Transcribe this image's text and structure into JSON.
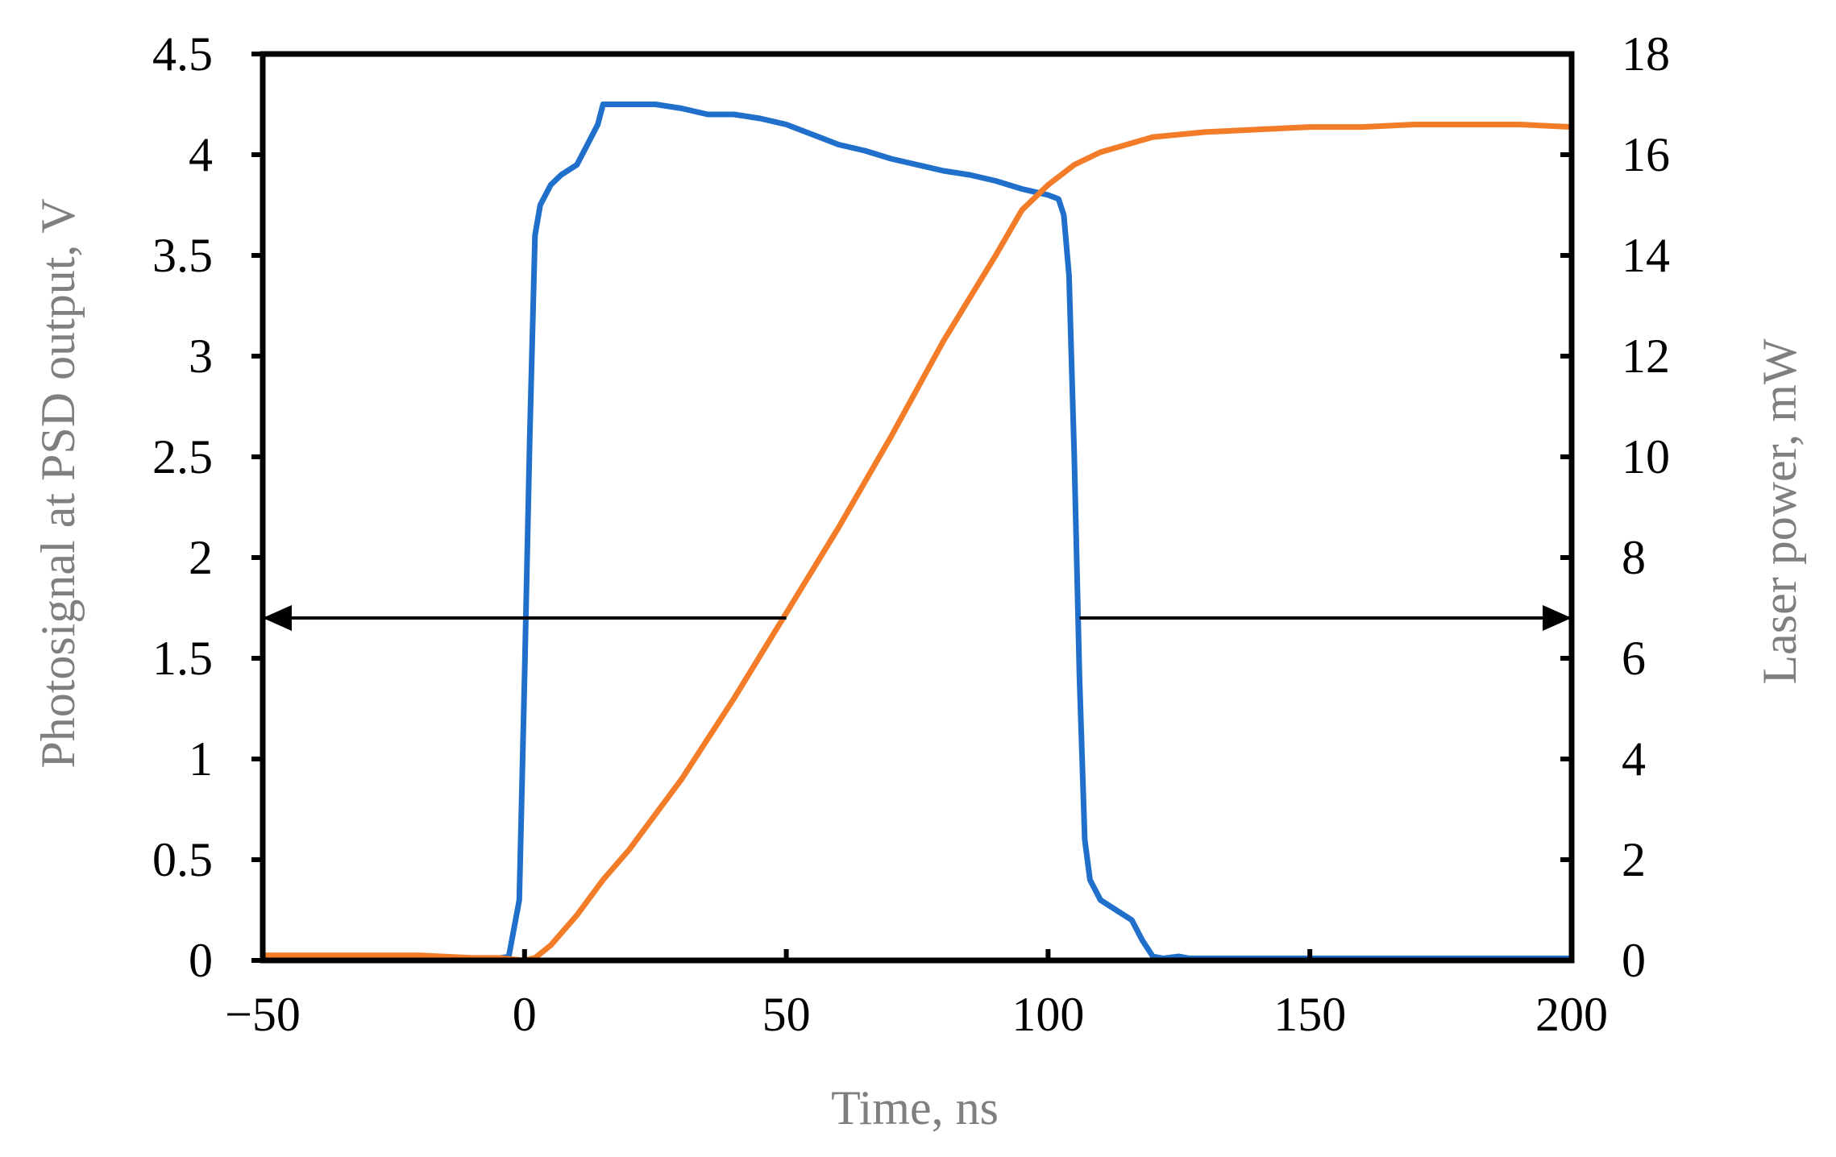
{
  "chart_data": {
    "type": "line",
    "xlabel": "Time, ns",
    "ylabel_left": "Photosignal at PSD output, V",
    "ylabel_right": "Laser power, mW",
    "xlim": [
      -50,
      200
    ],
    "ylim_left": [
      0,
      4.5
    ],
    "ylim_right": [
      0,
      18
    ],
    "x_ticks": [
      -50,
      0,
      50,
      100,
      150,
      200
    ],
    "x_tick_labels": [
      "−50",
      "0",
      "50",
      "100",
      "150",
      "200"
    ],
    "y_left_ticks": [
      0,
      0.5,
      1,
      1.5,
      2,
      2.5,
      3,
      3.5,
      4,
      4.5
    ],
    "y_left_tick_labels": [
      "0",
      "0.5",
      "1",
      "1.5",
      "2",
      "2.5",
      "3",
      "3.5",
      "4",
      "4.5"
    ],
    "y_right_ticks": [
      0,
      2,
      4,
      6,
      8,
      10,
      12,
      14,
      16,
      18
    ],
    "y_right_tick_labels": [
      "0",
      "2",
      "4",
      "6",
      "8",
      "10",
      "12",
      "14",
      "16",
      "18"
    ],
    "grid": false,
    "legend": "none",
    "series": [
      {
        "axis": "left",
        "color": "#1f6fcb",
        "x": [
          -50,
          -45,
          -40,
          -35,
          -30,
          -25,
          -20,
          -15,
          -10,
          -5,
          -3,
          -1,
          0,
          1,
          2,
          3,
          5,
          7,
          10,
          12,
          14,
          15,
          20,
          25,
          30,
          35,
          40,
          45,
          50,
          55,
          60,
          65,
          70,
          75,
          80,
          85,
          90,
          95,
          100,
          102,
          103,
          104,
          105,
          106,
          107,
          108,
          110,
          113,
          116,
          118,
          120,
          122,
          125,
          127,
          130,
          140,
          150,
          160,
          170,
          180,
          190,
          200
        ],
        "y": [
          0.01,
          0.01,
          0.01,
          0,
          0.01,
          0,
          0.01,
          0,
          0.01,
          0.01,
          0.02,
          0.3,
          1.4,
          2.6,
          3.6,
          3.75,
          3.85,
          3.9,
          3.95,
          4.05,
          4.15,
          4.25,
          4.25,
          4.25,
          4.23,
          4.2,
          4.2,
          4.18,
          4.15,
          4.1,
          4.05,
          4.02,
          3.98,
          3.95,
          3.92,
          3.9,
          3.87,
          3.83,
          3.8,
          3.78,
          3.7,
          3.4,
          2.5,
          1.4,
          0.6,
          0.4,
          0.3,
          0.25,
          0.2,
          0.1,
          0.02,
          0.01,
          0.02,
          0.01,
          0.01,
          0.01,
          0.01,
          0.01,
          0.01,
          0.01,
          0.01,
          0.01
        ]
      },
      {
        "axis": "right",
        "color": "#f37c28",
        "x": [
          -50,
          -40,
          -30,
          -20,
          -10,
          -5,
          0,
          2,
          5,
          10,
          15,
          20,
          30,
          40,
          50,
          60,
          70,
          80,
          90,
          95,
          100,
          105,
          110,
          120,
          130,
          140,
          150,
          160,
          170,
          180,
          190,
          200
        ],
        "y": [
          0.1,
          0.1,
          0.1,
          0.1,
          0.05,
          0.05,
          0,
          0.05,
          0.3,
          0.9,
          1.6,
          2.2,
          3.6,
          5.2,
          6.9,
          8.6,
          10.4,
          12.3,
          14.0,
          14.9,
          15.4,
          15.8,
          16.05,
          16.35,
          16.45,
          16.5,
          16.55,
          16.55,
          16.6,
          16.6,
          16.6,
          16.55
        ]
      }
    ],
    "annotations": [
      {
        "type": "arrow",
        "x_from": 50,
        "x_to": -50,
        "y": 1.7,
        "points_to_axis": "left"
      },
      {
        "type": "arrow",
        "x_from": 106,
        "x_to": 200,
        "y": 1.7,
        "points_to_axis": "right"
      }
    ]
  }
}
